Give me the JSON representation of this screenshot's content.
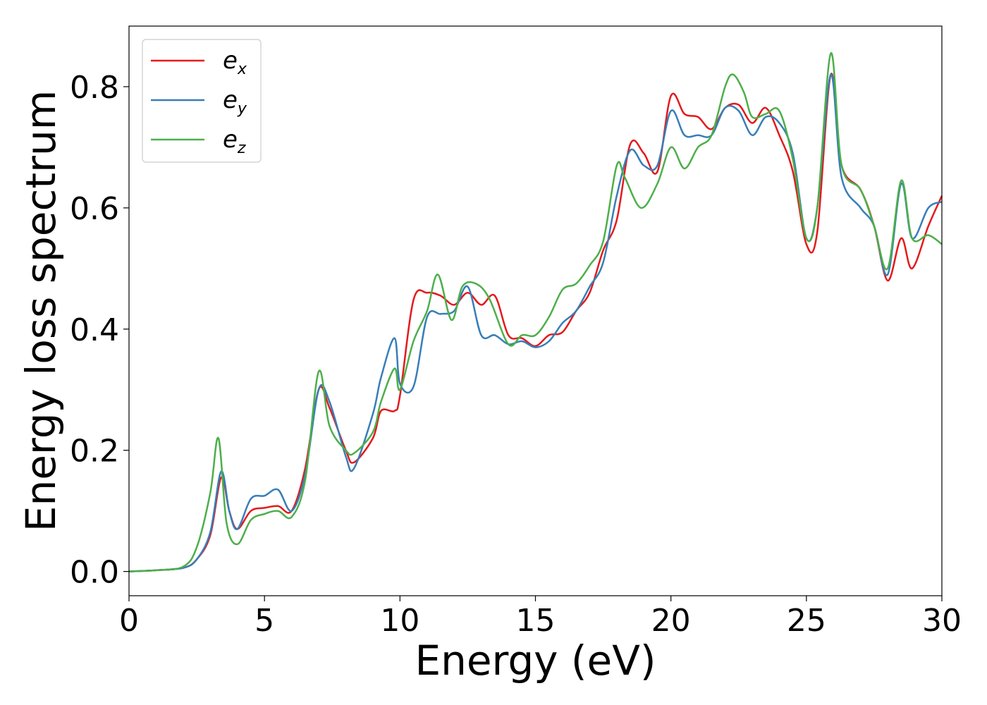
{
  "chart_data": {
    "type": "line",
    "xlabel": "Energy (eV)",
    "ylabel": "Energy loss spectrum",
    "xlim": [
      0,
      30
    ],
    "ylim": [
      -0.04,
      0.9
    ],
    "xticks": [
      "0",
      "5",
      "10",
      "15",
      "20",
      "25",
      "30"
    ],
    "yticks": [
      "0.0",
      "0.2",
      "0.4",
      "0.6",
      "0.8"
    ],
    "grid": false,
    "legend_position": "top-left",
    "series": [
      {
        "name": "e_x",
        "legend_base": "e",
        "legend_sub": "x",
        "color": "#e41a1c",
        "x": [
          0,
          1,
          2,
          2.5,
          3,
          3.4,
          3.7,
          4,
          4.5,
          5,
          5.5,
          6,
          6.5,
          7,
          7.4,
          8,
          8.3,
          9,
          9.3,
          9.8,
          10,
          10.5,
          11,
          11.5,
          12,
          12.5,
          13,
          13.5,
          14,
          14.5,
          15,
          15.5,
          16,
          16.5,
          17,
          17.5,
          18,
          18.5,
          19,
          19.5,
          20,
          20.5,
          21,
          21.5,
          22,
          22.5,
          23,
          23.5,
          24,
          24.5,
          25,
          25.4,
          25.9,
          26.3,
          27,
          27.5,
          28,
          28.5,
          28.9,
          29.5,
          30
        ],
        "y": [
          0,
          0.002,
          0.006,
          0.02,
          0.06,
          0.155,
          0.1,
          0.07,
          0.1,
          0.105,
          0.108,
          0.1,
          0.17,
          0.3,
          0.27,
          0.2,
          0.18,
          0.22,
          0.265,
          0.265,
          0.29,
          0.448,
          0.46,
          0.455,
          0.44,
          0.46,
          0.44,
          0.455,
          0.39,
          0.385,
          0.372,
          0.39,
          0.395,
          0.43,
          0.46,
          0.53,
          0.58,
          0.705,
          0.69,
          0.66,
          0.785,
          0.755,
          0.75,
          0.73,
          0.765,
          0.77,
          0.74,
          0.765,
          0.72,
          0.66,
          0.54,
          0.56,
          0.82,
          0.67,
          0.63,
          0.57,
          0.48,
          0.55,
          0.5,
          0.57,
          0.62
        ]
      },
      {
        "name": "e_y",
        "legend_base": "e",
        "legend_sub": "y",
        "color": "#377eb8",
        "x": [
          0,
          1,
          2,
          2.5,
          3,
          3.4,
          3.7,
          4,
          4.5,
          5,
          5.5,
          6,
          6.5,
          7,
          7.4,
          8,
          8.3,
          9,
          9.3,
          9.8,
          10,
          10.5,
          11,
          11.5,
          12,
          12.5,
          13,
          13.5,
          14,
          14.5,
          15,
          15.5,
          16,
          16.5,
          17,
          17.5,
          18,
          18.5,
          19,
          19.5,
          20,
          20.5,
          21,
          21.5,
          22,
          22.5,
          23,
          23.5,
          24,
          24.5,
          25,
          25.4,
          25.9,
          26.3,
          27,
          27.5,
          28,
          28.5,
          28.9,
          29.5,
          30
        ],
        "y": [
          0,
          0.002,
          0.006,
          0.02,
          0.065,
          0.165,
          0.1,
          0.07,
          0.12,
          0.125,
          0.135,
          0.1,
          0.16,
          0.3,
          0.28,
          0.19,
          0.17,
          0.26,
          0.32,
          0.385,
          0.31,
          0.305,
          0.42,
          0.425,
          0.43,
          0.47,
          0.39,
          0.39,
          0.375,
          0.38,
          0.37,
          0.38,
          0.41,
          0.43,
          0.47,
          0.51,
          0.62,
          0.695,
          0.67,
          0.67,
          0.76,
          0.72,
          0.72,
          0.72,
          0.765,
          0.76,
          0.72,
          0.75,
          0.74,
          0.69,
          0.55,
          0.6,
          0.82,
          0.65,
          0.6,
          0.57,
          0.49,
          0.64,
          0.55,
          0.6,
          0.61
        ]
      },
      {
        "name": "e_z",
        "legend_base": "e",
        "legend_sub": "z",
        "color": "#4daf4a",
        "x": [
          0,
          1,
          2,
          2.5,
          3,
          3.3,
          3.6,
          4,
          4.5,
          5,
          5.5,
          6,
          6.5,
          7,
          7.4,
          8,
          8.3,
          9,
          9.3,
          9.8,
          10,
          10.5,
          11,
          11.4,
          11.9,
          12.3,
          12.8,
          13.3,
          14,
          14.5,
          15,
          15.5,
          16,
          16.5,
          17,
          17.5,
          18,
          18.3,
          18.9,
          19.5,
          20,
          20.5,
          21,
          21.5,
          22,
          22.3,
          22.7,
          23,
          23.5,
          24,
          24.5,
          25,
          25.4,
          25.9,
          26.3,
          27,
          27.5,
          28,
          28.5,
          28.9,
          29.5,
          30
        ],
        "y": [
          0,
          0.002,
          0.008,
          0.04,
          0.13,
          0.22,
          0.08,
          0.045,
          0.085,
          0.095,
          0.1,
          0.09,
          0.15,
          0.33,
          0.24,
          0.2,
          0.195,
          0.23,
          0.28,
          0.335,
          0.3,
          0.38,
          0.43,
          0.49,
          0.415,
          0.47,
          0.475,
          0.45,
          0.375,
          0.39,
          0.39,
          0.42,
          0.465,
          0.475,
          0.505,
          0.545,
          0.67,
          0.65,
          0.6,
          0.64,
          0.7,
          0.665,
          0.7,
          0.72,
          0.8,
          0.82,
          0.79,
          0.75,
          0.755,
          0.76,
          0.68,
          0.55,
          0.6,
          0.855,
          0.67,
          0.63,
          0.57,
          0.5,
          0.645,
          0.55,
          0.555,
          0.54
        ]
      }
    ]
  }
}
